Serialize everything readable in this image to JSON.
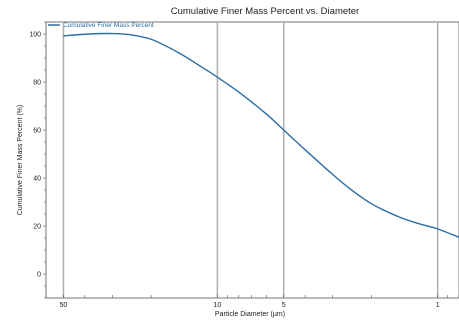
{
  "chart_data": {
    "type": "line",
    "title": "Cumulative Finer Mass Percent vs. Diameter",
    "xlabel": "Particle Diameter (µm)",
    "ylabel": "Cumulative Finer Mass Percent (%)",
    "x_scale": "log",
    "x_reversed": true,
    "xlim": [
      60,
      0.8
    ],
    "ylim": [
      -10,
      105
    ],
    "x_ticks": [
      "50",
      "10",
      "5",
      "1"
    ],
    "y_ticks": [
      "100",
      "80",
      "60",
      "40",
      "20",
      "0"
    ],
    "grid": "vertical",
    "legend": "top-left",
    "color": "#2d6da3",
    "series": [
      {
        "name": "Cumulative Finer Mass Percent",
        "x": [
          50,
          40,
          30,
          25,
          20,
          15,
          12,
          10,
          8,
          6,
          5,
          4,
          3,
          2.5,
          2,
          1.5,
          1.2,
          1,
          0.8
        ],
        "y": [
          99.2,
          99.9,
          100.2,
          99.7,
          97.8,
          92.2,
          86.7,
          82.0,
          75.8,
          66.7,
          60.0,
          51.8,
          41.5,
          35.5,
          29.3,
          23.8,
          20.8,
          18.8,
          15.3
        ]
      }
    ]
  }
}
